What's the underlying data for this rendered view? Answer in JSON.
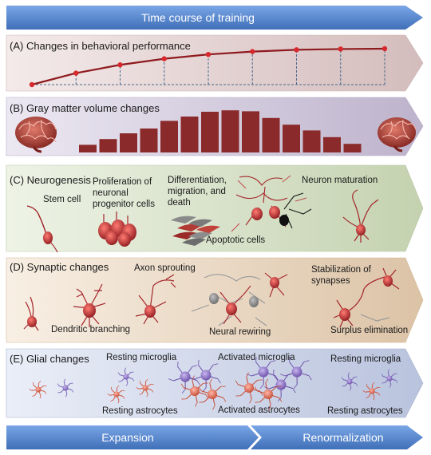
{
  "top_arrow": {
    "label": "Time course of training"
  },
  "bottom_arrows": {
    "left": "Expansion",
    "right": "Renormalization"
  },
  "panels": {
    "a": {
      "title": "(A) Changes in behavioral performance"
    },
    "b": {
      "title": "(B) Gray matter volume changes"
    },
    "c": {
      "title": "(C) Neurogenesis",
      "labels": {
        "stem": "Stem cell",
        "prolif1": "Proliferation of",
        "prolif2": "neuronal",
        "prolif3": "progenitor cells",
        "diff1": "Differentiation,",
        "diff2": "migration, and",
        "diff3": "death",
        "apoptotic": "Apoptotic cells",
        "maturation": "Neuron maturation"
      }
    },
    "d": {
      "title": "(D) Synaptic changes",
      "labels": {
        "axon": "Axon sprouting",
        "dendritic": "Dendritic branching",
        "rewiring": "Neural rewiring",
        "stab1": "Stabilization of",
        "stab2": "synapses",
        "surplus": "Surplus elimination"
      }
    },
    "e": {
      "title": "(E) Glial changes",
      "labels": {
        "resting_micro_1": "Resting microglia",
        "activated_micro": "Activated microglia",
        "resting_micro_2": "Resting microglia",
        "resting_astro_1": "Resting astrocytes",
        "activated_astro": "Activated astrocytes",
        "resting_astro_2": "Resting astrocytes"
      }
    }
  },
  "performance_curve": [
    0.0,
    0.32,
    0.55,
    0.72,
    0.84,
    0.92,
    0.97,
    0.99,
    1.0
  ],
  "gray_matter_bars": [
    0.16,
    0.28,
    0.4,
    0.5,
    0.66,
    0.75,
    0.85,
    0.88,
    0.86,
    0.72,
    0.58,
    0.46,
    0.32,
    0.18
  ],
  "colors": {
    "arrow_blue": "#5b8fd6",
    "panel_a": "#e8d6d6",
    "panel_b": "#d6d0e0",
    "panel_c": "#dce6d0",
    "panel_d": "#f0e0cf",
    "panel_e": "#d6dcec",
    "bar": "#8b2a2a",
    "neuron": "#a3252a"
  }
}
